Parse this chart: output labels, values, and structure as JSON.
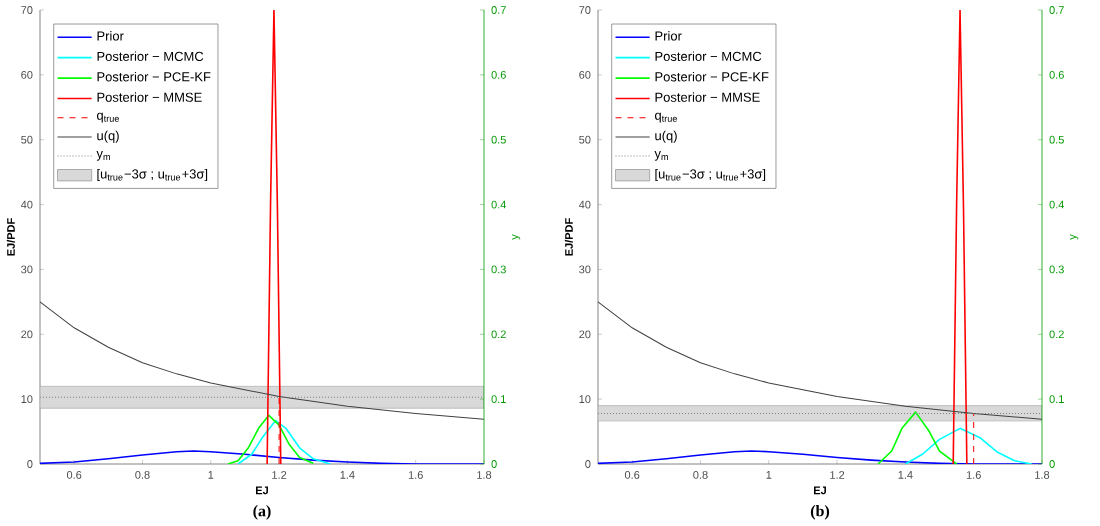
{
  "chart_data": [
    {
      "type": "line",
      "xlabel": "EJ",
      "ylabel": "EJ/PDF",
      "y2label": "y",
      "annotations": [
        "(a)"
      ],
      "legend": "top left",
      "xlim": [
        0.5,
        1.8
      ],
      "xticks": [
        0.6,
        0.8,
        1,
        1.2,
        1.4,
        1.6,
        1.8
      ],
      "ylim": [
        0,
        70
      ],
      "yticks": [
        0,
        10,
        20,
        30,
        40,
        50,
        60,
        70
      ],
      "y2lim": [
        0,
        0.7
      ],
      "y2ticks": [
        0,
        0.1,
        0.2,
        0.3,
        0.4,
        0.5,
        0.6,
        0.7
      ],
      "bands": [
        {
          "axis": "y",
          "from": 8.6,
          "to": 12,
          "label": "[u$_{true}$−3σ ; u$_{true}$+3σ]",
          "color": "#d9d9d9"
        }
      ],
      "series": [
        {
          "name": "Prior",
          "color": "#0000ff",
          "x": [
            0.5,
            0.6,
            0.7,
            0.8,
            0.9,
            0.95,
            1.0,
            1.1,
            1.2,
            1.3,
            1.4,
            1.5,
            1.6,
            1.7,
            1.8
          ],
          "values": [
            0.1,
            0.3,
            0.8,
            1.4,
            1.9,
            2,
            1.9,
            1.5,
            1.0,
            0.6,
            0.3,
            0.1,
            0,
            0,
            0
          ]
        },
        {
          "name": "Posterior − MCMC",
          "color": "#00ffff",
          "x": [
            1.08,
            1.12,
            1.15,
            1.19,
            1.22,
            1.26,
            1.3,
            1.35
          ],
          "values": [
            0,
            1.5,
            4,
            6.7,
            5.5,
            2.5,
            0.8,
            0
          ]
        },
        {
          "name": "Posterior − PCE-KF",
          "color": "#00ff00",
          "x": [
            1.05,
            1.08,
            1.11,
            1.14,
            1.17,
            1.2,
            1.23,
            1.26,
            1.3
          ],
          "values": [
            0,
            0.5,
            2.5,
            5.5,
            7.5,
            6,
            3,
            1,
            0.1
          ]
        },
        {
          "name": "Posterior − MMSE",
          "color": "#ff0000",
          "x": [
            1.165,
            1.175,
            1.185,
            1.195,
            1.205
          ],
          "values": [
            0,
            40,
            70,
            40,
            0
          ]
        },
        {
          "name": "q$_{true}$",
          "color": "#ff0000",
          "line_style": "dashed",
          "x": [
            1.2,
            1.2
          ],
          "values": [
            0,
            10.4
          ]
        },
        {
          "name": "u(q)",
          "color": "#404040",
          "x": [
            0.5,
            0.6,
            0.7,
            0.8,
            0.9,
            1.0,
            1.2,
            1.4,
            1.6,
            1.8
          ],
          "values": [
            25,
            21,
            18,
            15.6,
            13.9,
            12.5,
            10.4,
            8.9,
            7.8,
            6.9
          ]
        },
        {
          "name": "y$_{m}$",
          "color": "#808080",
          "line_style": "dotted",
          "x": [
            0.5,
            1.8
          ],
          "values": [
            10.3,
            10.3
          ]
        }
      ]
    },
    {
      "type": "line",
      "xlabel": "EJ",
      "ylabel": "EJ/PDF",
      "y2label": "y",
      "annotations": [
        "(b)"
      ],
      "legend": "top left",
      "xlim": [
        0.5,
        1.8
      ],
      "xticks": [
        0.6,
        0.8,
        1,
        1.2,
        1.4,
        1.6,
        1.8
      ],
      "ylim": [
        0,
        70
      ],
      "yticks": [
        0,
        10,
        20,
        30,
        40,
        50,
        60,
        70
      ],
      "y2lim": [
        0,
        0.7
      ],
      "y2ticks": [
        0,
        0.1,
        0.2,
        0.3,
        0.4,
        0.5,
        0.6,
        0.7
      ],
      "bands": [
        {
          "axis": "y",
          "from": 6.6,
          "to": 9,
          "label": "[u$_{true}$−3σ ; u$_{true}$+3σ]",
          "color": "#d9d9d9"
        }
      ],
      "series": [
        {
          "name": "Prior",
          "color": "#0000ff",
          "x": [
            0.5,
            0.6,
            0.7,
            0.8,
            0.9,
            0.95,
            1.0,
            1.1,
            1.2,
            1.3,
            1.4,
            1.5,
            1.6,
            1.7,
            1.8
          ],
          "values": [
            0.1,
            0.3,
            0.8,
            1.4,
            1.9,
            2,
            1.9,
            1.5,
            1.0,
            0.6,
            0.3,
            0.1,
            0,
            0,
            0
          ]
        },
        {
          "name": "Posterior − MCMC",
          "color": "#00ffff",
          "x": [
            1.4,
            1.45,
            1.5,
            1.56,
            1.62,
            1.67,
            1.72,
            1.77
          ],
          "values": [
            0,
            1.5,
            3.8,
            5.5,
            4,
            1.8,
            0.5,
            0
          ]
        },
        {
          "name": "Posterior − PCE-KF",
          "color": "#00ff00",
          "x": [
            1.32,
            1.36,
            1.39,
            1.43,
            1.47,
            1.5,
            1.55
          ],
          "values": [
            0,
            2,
            5.5,
            8,
            5,
            2,
            0
          ]
        },
        {
          "name": "Posterior − MMSE",
          "color": "#ff0000",
          "x": [
            1.54,
            1.55,
            1.56,
            1.57,
            1.58
          ],
          "values": [
            0,
            40,
            70,
            40,
            0
          ]
        },
        {
          "name": "q$_{true}$",
          "color": "#ff0000",
          "line_style": "dashed",
          "x": [
            1.6,
            1.6
          ],
          "values": [
            0,
            7.8
          ]
        },
        {
          "name": "u(q)",
          "color": "#404040",
          "x": [
            0.5,
            0.6,
            0.7,
            0.8,
            0.9,
            1.0,
            1.2,
            1.4,
            1.6,
            1.8
          ],
          "values": [
            25,
            21,
            18,
            15.6,
            13.9,
            12.5,
            10.4,
            8.9,
            7.8,
            6.9
          ]
        },
        {
          "name": "y$_{m}$",
          "color": "#808080",
          "line_style": "dotted",
          "x": [
            0.5,
            1.8
          ],
          "values": [
            7.8,
            7.8
          ]
        }
      ]
    }
  ]
}
